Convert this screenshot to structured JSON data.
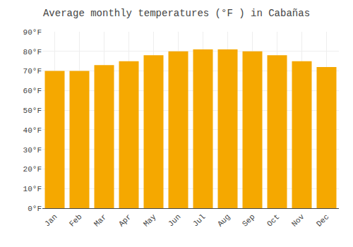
{
  "chart_data": {
    "type": "bar",
    "title": "Average monthly temperatures (°F ) in Cabañas",
    "categories": [
      "Jan",
      "Feb",
      "Mar",
      "Apr",
      "May",
      "Jun",
      "Jul",
      "Aug",
      "Sep",
      "Oct",
      "Nov",
      "Dec"
    ],
    "values": [
      70,
      70,
      73,
      75,
      78,
      80,
      81,
      81,
      80,
      78,
      75,
      72
    ],
    "color": "#F5A800",
    "ylim": [
      0,
      90
    ],
    "yticks": [
      {
        "value": 0,
        "label": "0°F"
      },
      {
        "value": 10,
        "label": "10°F"
      },
      {
        "value": 20,
        "label": "20°F"
      },
      {
        "value": 30,
        "label": "30°F"
      },
      {
        "value": 40,
        "label": "40°F"
      },
      {
        "value": 50,
        "label": "50°F"
      },
      {
        "value": 60,
        "label": "60°F"
      },
      {
        "value": 70,
        "label": "70°F"
      },
      {
        "value": 80,
        "label": "80°F"
      },
      {
        "value": 90,
        "label": "90°F"
      }
    ],
    "grid": true
  }
}
